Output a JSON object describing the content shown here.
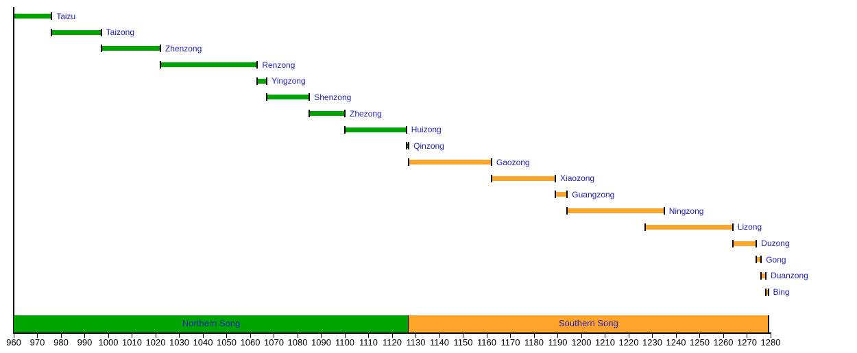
{
  "chart_data": {
    "type": "bar",
    "subtype": "gantt-timeline",
    "title": "",
    "xlabel": "",
    "ylabel": "",
    "grid": false,
    "legend_position": "none",
    "axis": {
      "min": 960,
      "max": 1280,
      "tick_step": 10
    },
    "xlim": [
      960,
      1280
    ],
    "xticks": [
      960,
      970,
      980,
      990,
      1000,
      1010,
      1020,
      1030,
      1040,
      1050,
      1060,
      1070,
      1080,
      1090,
      1100,
      1110,
      1120,
      1130,
      1140,
      1150,
      1160,
      1170,
      1180,
      1190,
      1200,
      1210,
      1220,
      1230,
      1240,
      1250,
      1260,
      1270,
      1280
    ],
    "bars": [
      {
        "label": "Taizu",
        "start": 960,
        "end": 976,
        "group": "Northern Song"
      },
      {
        "label": "Taizong",
        "start": 976,
        "end": 997,
        "group": "Northern Song"
      },
      {
        "label": "Zhenzong",
        "start": 997,
        "end": 1022,
        "group": "Northern Song"
      },
      {
        "label": "Renzong",
        "start": 1022,
        "end": 1063,
        "group": "Northern Song"
      },
      {
        "label": "Yingzong",
        "start": 1063,
        "end": 1067,
        "group": "Northern Song"
      },
      {
        "label": "Shenzong",
        "start": 1067,
        "end": 1085,
        "group": "Northern Song"
      },
      {
        "label": "Zhezong",
        "start": 1085,
        "end": 1100,
        "group": "Northern Song"
      },
      {
        "label": "Huizong",
        "start": 1100,
        "end": 1126,
        "group": "Northern Song"
      },
      {
        "label": "Qinzong",
        "start": 1126,
        "end": 1127,
        "group": "Northern Song"
      },
      {
        "label": "Gaozong",
        "start": 1127,
        "end": 1162,
        "group": "Southern Song"
      },
      {
        "label": "Xiaozong",
        "start": 1162,
        "end": 1189,
        "group": "Southern Song"
      },
      {
        "label": "Guangzong",
        "start": 1189,
        "end": 1194,
        "group": "Southern Song"
      },
      {
        "label": "Ningzong",
        "start": 1194,
        "end": 1235,
        "group": "Southern Song"
      },
      {
        "label": "Lizong",
        "start": 1227,
        "end": 1264,
        "group": "Southern Song"
      },
      {
        "label": "Duzong",
        "start": 1264,
        "end": 1274,
        "group": "Southern Song"
      },
      {
        "label": "Gong",
        "start": 1274,
        "end": 1276,
        "group": "Southern Song"
      },
      {
        "label": "Duanzong",
        "start": 1276,
        "end": 1278,
        "group": "Southern Song"
      },
      {
        "label": "Bing",
        "start": 1278,
        "end": 1279,
        "group": "Southern Song"
      }
    ],
    "periods": [
      {
        "name": "Northern Song",
        "start": 960,
        "end": 1127,
        "color": "#00A400"
      },
      {
        "name": "Southern Song",
        "start": 1127,
        "end": 1279,
        "color": "#FFA428"
      }
    ],
    "colors": {
      "northern_bar": "#00A400",
      "southern_bar": "#FFA428",
      "label_text": "#2121C2",
      "axis": "#000000",
      "bar_end_cap": "#000000",
      "tick_text": "#000000"
    }
  }
}
